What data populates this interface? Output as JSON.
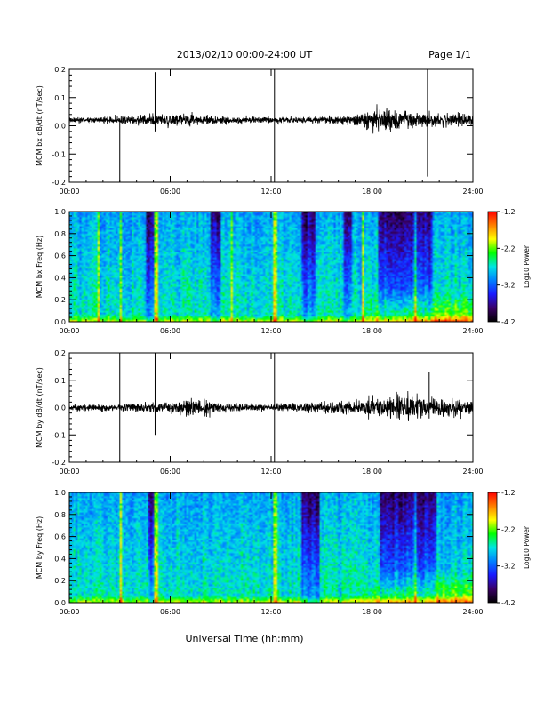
{
  "header": {
    "date_title": "2013/02/10  00:00-24:00 UT",
    "page_label": "Page 1/1"
  },
  "footer": {
    "x_title": "Universal Time (hh:mm)"
  },
  "colors": {
    "trace": "#000000",
    "colormap": [
      "#000000",
      "#3a0066",
      "#1a1aff",
      "#0080ff",
      "#00e5e5",
      "#00ff00",
      "#ffff00",
      "#ff8000",
      "#ff0000"
    ]
  },
  "chart_data": [
    {
      "type": "line",
      "ylabel": "MCM bx dB/dt (nT/sec)",
      "xlim": [
        0,
        24
      ],
      "ylim": [
        -0.2,
        0.2
      ],
      "x_ticks": [
        "00:00",
        "06:00",
        "12:00",
        "18:00",
        "24:00"
      ],
      "y_ticks": [
        "-0.2",
        "-0.1",
        "0.0",
        "0.1",
        "0.2"
      ],
      "baseline": 0.02,
      "noise_envelope": {
        "hours": [
          0,
          3,
          6,
          9,
          12,
          15,
          16,
          17,
          18,
          19,
          20,
          21,
          22,
          24
        ],
        "amplitude": [
          0.015,
          0.025,
          0.04,
          0.025,
          0.02,
          0.02,
          0.025,
          0.035,
          0.07,
          0.06,
          0.05,
          0.045,
          0.04,
          0.035
        ]
      },
      "spikes": [
        {
          "hour": 3.0,
          "min": -0.2,
          "max": 0.02
        },
        {
          "hour": 5.1,
          "min": -0.02,
          "max": 0.19
        },
        {
          "hour": 12.2,
          "min": -0.2,
          "max": 0.2
        },
        {
          "hour": 21.3,
          "min": -0.18,
          "max": 0.2
        }
      ]
    },
    {
      "type": "heatmap",
      "ylabel": "MCM bx Freq (Hz)",
      "xlim": [
        0,
        24
      ],
      "ylim": [
        0,
        1.0
      ],
      "x_ticks": [
        "00:00",
        "06:00",
        "12:00",
        "18:00",
        "24:00"
      ],
      "y_ticks": [
        "0.0",
        "0.2",
        "0.4",
        "0.6",
        "0.8",
        "1.0"
      ],
      "colorbar": {
        "title": "Log10 Power",
        "ticks": [
          "-1.2",
          "-2.2",
          "-3.2",
          "-4.2"
        ],
        "range": [
          -4.2,
          -1.2
        ]
      },
      "bright_lines": [
        1.7,
        3.0,
        5.1,
        9.6,
        12.2,
        17.4,
        20.5
      ],
      "dark_bands": [
        [
          4.5,
          5.0
        ],
        [
          8.3,
          8.9
        ],
        [
          13.7,
          14.6
        ],
        [
          16.3,
          16.7
        ],
        [
          18.3,
          21.5
        ]
      ],
      "enhancement": {
        "hour_start": 17.0,
        "hour_end": 24.0,
        "freq_max": 0.3
      }
    },
    {
      "type": "line",
      "ylabel": "MCM by dB/dt (nT/sec)",
      "xlim": [
        0,
        24
      ],
      "ylim": [
        -0.2,
        0.2
      ],
      "x_ticks": [
        "00:00",
        "06:00",
        "12:00",
        "18:00",
        "24:00"
      ],
      "y_ticks": [
        "-0.2",
        "-0.1",
        "0.0",
        "0.1",
        "0.2"
      ],
      "baseline": 0.0,
      "noise_envelope": {
        "hours": [
          0,
          3,
          6,
          7,
          8,
          9,
          12,
          15,
          16,
          17,
          18,
          19,
          20,
          21,
          22,
          24
        ],
        "amplitude": [
          0.02,
          0.025,
          0.035,
          0.05,
          0.06,
          0.03,
          0.02,
          0.035,
          0.04,
          0.05,
          0.06,
          0.07,
          0.075,
          0.07,
          0.06,
          0.05
        ]
      },
      "spikes": [
        {
          "hour": 3.0,
          "min": -0.2,
          "max": 0.2
        },
        {
          "hour": 5.1,
          "min": -0.1,
          "max": 0.2
        },
        {
          "hour": 12.2,
          "min": -0.2,
          "max": 0.2
        },
        {
          "hour": 21.4,
          "min": -0.04,
          "max": 0.13
        }
      ]
    },
    {
      "type": "heatmap",
      "ylabel": "MCM by Freq (Hz)",
      "xlim": [
        0,
        24
      ],
      "ylim": [
        0,
        1.0
      ],
      "x_ticks": [
        "00:00",
        "06:00",
        "12:00",
        "18:00",
        "24:00"
      ],
      "y_ticks": [
        "0.0",
        "0.2",
        "0.4",
        "0.6",
        "0.8",
        "1.0"
      ],
      "colorbar": {
        "title": "Log10 Power",
        "ticks": [
          "-1.2",
          "-2.2",
          "-3.2",
          "-4.2"
        ],
        "range": [
          -4.2,
          -1.2
        ]
      },
      "bright_lines": [
        3.0,
        5.1,
        12.2,
        20.5
      ],
      "dark_bands": [
        [
          4.6,
          5.0
        ],
        [
          13.7,
          14.8
        ],
        [
          18.4,
          21.8
        ]
      ],
      "enhancement": {
        "hour_start": 17.0,
        "hour_end": 24.0,
        "freq_max": 0.3
      }
    }
  ]
}
